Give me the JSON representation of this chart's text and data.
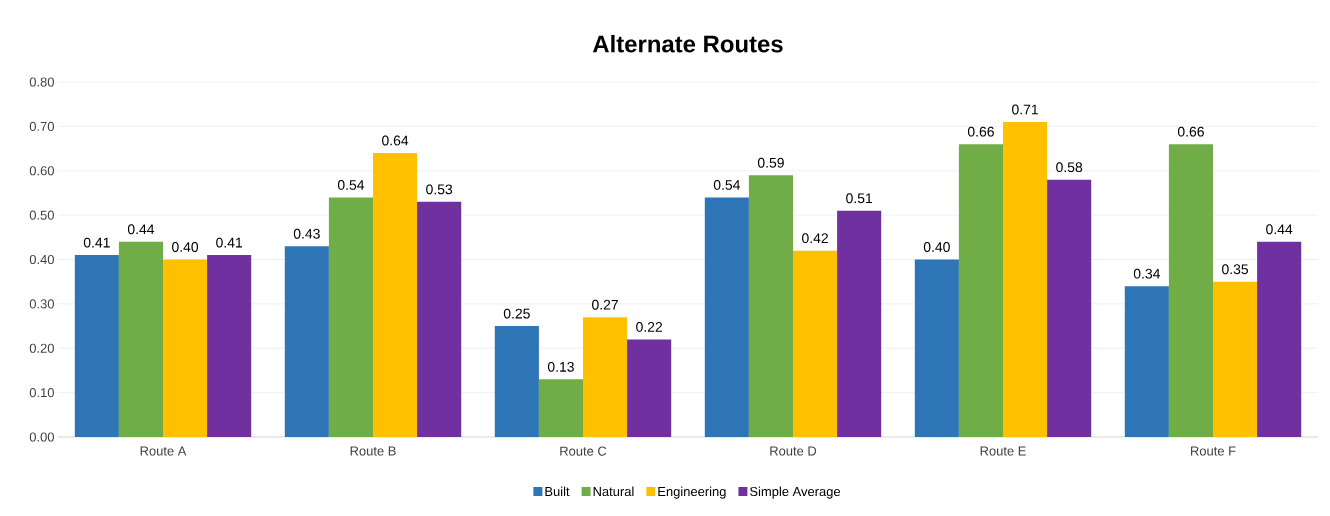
{
  "chart_data": {
    "type": "bar",
    "title": "Alternate Routes",
    "categories": [
      "Route A",
      "Route B",
      "Route C",
      "Route D",
      "Route E",
      "Route F"
    ],
    "series": [
      {
        "name": "Built",
        "color": "#2e75b6",
        "values": [
          0.41,
          0.43,
          0.25,
          0.54,
          0.4,
          0.34
        ],
        "value_labels": [
          "0.41",
          "0.43",
          "0.25",
          "0.54",
          "0.40",
          "0.34"
        ]
      },
      {
        "name": "Natural",
        "color": "#70ad47",
        "values": [
          0.44,
          0.54,
          0.13,
          0.59,
          0.66,
          0.66
        ],
        "value_labels": [
          "0.44",
          "0.54",
          "0.13",
          "0.59",
          "0.66",
          "0.66"
        ]
      },
      {
        "name": "Engineering",
        "color": "#ffc000",
        "values": [
          0.4,
          0.64,
          0.27,
          0.42,
          0.71,
          0.35
        ],
        "value_labels": [
          "0.40",
          "0.64",
          "0.27",
          "0.42",
          "0.71",
          "0.35"
        ]
      },
      {
        "name": "Simple Average",
        "color": "#7030a0",
        "values": [
          0.41,
          0.53,
          0.22,
          0.51,
          0.58,
          0.44
        ],
        "value_labels": [
          "0.41",
          "0.53",
          "0.22",
          "0.51",
          "0.58",
          "0.44"
        ]
      }
    ],
    "ylim": [
      0,
      0.8
    ],
    "yticks": [
      {
        "value": 0,
        "label": "0.00"
      },
      {
        "value": 0.1,
        "label": "0.10"
      },
      {
        "value": 0.2,
        "label": "0.20"
      },
      {
        "value": 0.3,
        "label": "0.30"
      },
      {
        "value": 0.4,
        "label": "0.40"
      },
      {
        "value": 0.5,
        "label": "0.50"
      },
      {
        "value": 0.6,
        "label": "0.60"
      },
      {
        "value": 0.7,
        "label": "0.70"
      },
      {
        "value": 0.8,
        "label": "0.80"
      }
    ],
    "grid": "y",
    "legend": "bottom"
  }
}
